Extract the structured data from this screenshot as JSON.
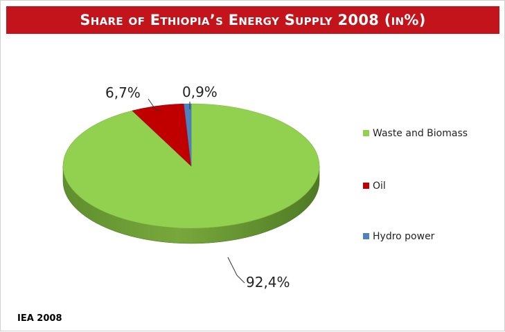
{
  "chart_data": {
    "type": "pie",
    "title": "Share of Ethiopia’s Energy Supply 2008 (in%)",
    "series": [
      {
        "name": "Waste and Biomass",
        "value": 92.4,
        "label": "92,4%",
        "color": "#92d050"
      },
      {
        "name": "Oil",
        "value": 6.7,
        "label": "6,7%",
        "color": "#c00000"
      },
      {
        "name": "Hydro power",
        "value": 0.9,
        "label": "0,9%",
        "color": "#4f81bd"
      }
    ],
    "legend_position": "right",
    "three_d": true
  },
  "source": "IEA 2008"
}
